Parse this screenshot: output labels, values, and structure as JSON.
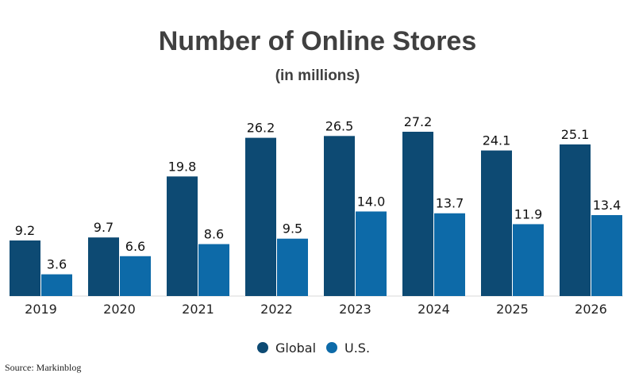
{
  "chart_data": {
    "type": "bar",
    "title": "Number of Online Stores",
    "subtitle": "(in millions)",
    "categories": [
      "2019",
      "2020",
      "2021",
      "2022",
      "2023",
      "2024",
      "2025",
      "2026"
    ],
    "series": [
      {
        "name": "Global",
        "values": [
          9.2,
          9.7,
          19.8,
          26.2,
          26.5,
          27.2,
          24.1,
          25.1
        ],
        "labels": [
          "9.2",
          "9.7",
          "19.8",
          "26.2",
          "26.5",
          "27.2",
          "24.1",
          "25.1"
        ],
        "color": "#0d4a73"
      },
      {
        "name": "U.S.",
        "values": [
          3.6,
          6.6,
          8.6,
          9.5,
          14.0,
          13.7,
          11.9,
          13.4
        ],
        "labels": [
          "3.6",
          "6.6",
          "8.6",
          "9.5",
          "14.0",
          "13.7",
          "11.9",
          "13.4"
        ],
        "color": "#0d6aa8"
      }
    ],
    "ylim": [
      0,
      27.2
    ],
    "grid": false,
    "legend_position": "bottom",
    "source": "Source: Markinblog"
  }
}
